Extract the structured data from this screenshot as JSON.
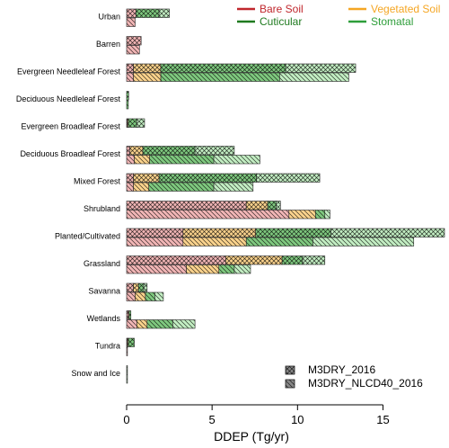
{
  "chart_data": {
    "type": "bar",
    "orientation": "horizontal",
    "stacked": true,
    "xlabel": "DDEP (Tg/yr)",
    "ylabel": "",
    "xlim": [
      0,
      18.6
    ],
    "xticks": [
      0,
      5,
      10,
      15
    ],
    "categories": [
      "Urban",
      "Barren",
      "Evergreen Needleleaf Forest",
      "Deciduous Needleleaf Forest",
      "Evergreen Broadleaf Forest",
      "Deciduous Broadleaf Forest",
      "Mixed Forest",
      "Shrubland",
      "Planted/Cultivated",
      "Grassland",
      "Savanna",
      "Wetlands",
      "Tundra",
      "Snow and Ice"
    ],
    "components": [
      {
        "name": "Bare Soil",
        "color": "#c0272d",
        "fill": "#f2b6b6"
      },
      {
        "name": "Vegetated Soil",
        "color": "#f5a623",
        "fill": "#fbd38d"
      },
      {
        "name": "Cuticular",
        "color": "#1f7a1f",
        "fill": "#7fc97f"
      },
      {
        "name": "Stomatal",
        "color": "#2e9e3a",
        "fill": "#c3eec3"
      }
    ],
    "series": [
      {
        "name": "M3DRY_2016",
        "pattern": "crosshatch",
        "values": [
          [
            0.55,
            0,
            1.35,
            0.6
          ],
          [
            0.85,
            0,
            0,
            0
          ],
          [
            0.4,
            1.6,
            7.3,
            4.1
          ],
          [
            0.0,
            0.0,
            0.12,
            0.0
          ],
          [
            0.05,
            0.05,
            0.5,
            0.45
          ],
          [
            0.2,
            0.75,
            3.05,
            2.3
          ],
          [
            0.4,
            1.5,
            5.7,
            3.7
          ],
          [
            7.0,
            1.25,
            0.5,
            0.25
          ],
          [
            3.3,
            4.25,
            4.4,
            6.65
          ],
          [
            5.8,
            3.3,
            1.2,
            1.3
          ],
          [
            0.4,
            0.3,
            0.3,
            0.2
          ],
          [
            0.1,
            0.05,
            0.1,
            0.0
          ],
          [
            0.05,
            0.05,
            0.35,
            0.0
          ],
          [
            0.0,
            0.0,
            0.0,
            0.05
          ]
        ]
      },
      {
        "name": "M3DRY_NLCD40_2016",
        "pattern": "diagonal",
        "values": [
          [
            0.5,
            0,
            0,
            0
          ],
          [
            0.75,
            0,
            0,
            0
          ],
          [
            0.4,
            1.6,
            6.95,
            4.05
          ],
          [
            0.0,
            0.0,
            0.1,
            0.0
          ],
          [
            0.0,
            0.0,
            0.0,
            0.0
          ],
          [
            0.45,
            0.9,
            3.75,
            2.7
          ],
          [
            0.4,
            0.9,
            3.8,
            2.3
          ],
          [
            9.5,
            1.55,
            0.55,
            0.3
          ],
          [
            3.3,
            3.7,
            3.9,
            5.9
          ],
          [
            3.5,
            1.9,
            0.9,
            0.95
          ],
          [
            0.5,
            0.6,
            0.55,
            0.5
          ],
          [
            0.6,
            0.6,
            1.5,
            1.3
          ],
          [
            0.05,
            0.0,
            0.0,
            0.0
          ],
          [
            0.0,
            0.0,
            0.0,
            0.05
          ]
        ]
      }
    ]
  }
}
